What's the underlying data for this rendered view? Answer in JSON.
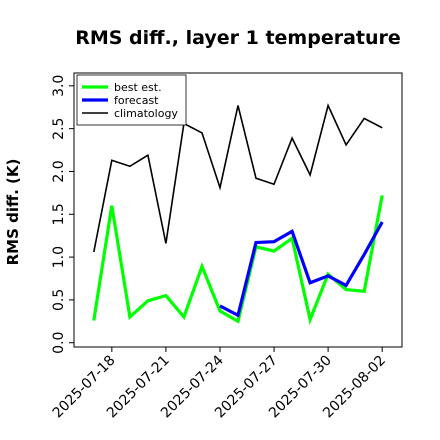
{
  "chart_data": {
    "type": "line",
    "title": "RMS diff., layer 1 temperature",
    "ylabel": "RMS diff. (K)",
    "xlabel": "",
    "ylim": [
      -0.05,
      3.15
    ],
    "yticks": [
      "0.0",
      "0.5",
      "1.0",
      "1.5",
      "2.0",
      "2.5",
      "3.0"
    ],
    "xticks": [
      "2025-07-18",
      "2025-07-21",
      "2025-07-24",
      "2025-07-27",
      "2025-07-30",
      "2025-08-02"
    ],
    "highlighted_xtick": "2025-07-24",
    "highlight_color": "#2e8b2e",
    "legend_position": "top-left",
    "grid": false,
    "series": [
      {
        "name": "best est.",
        "color": "#00ff00",
        "x": [
          "2025-07-17",
          "2025-07-18",
          "2025-07-19",
          "2025-07-20",
          "2025-07-21",
          "2025-07-22",
          "2025-07-23",
          "2025-07-24",
          "2025-07-25",
          "2025-07-26",
          "2025-07-27",
          "2025-07-28",
          "2025-07-29",
          "2025-07-30",
          "2025-07-31",
          "2025-08-01",
          "2025-08-02"
        ],
        "y": [
          0.26,
          1.6,
          0.3,
          0.49,
          0.55,
          0.3,
          0.89,
          0.37,
          0.25,
          1.12,
          1.07,
          1.22,
          0.27,
          0.8,
          0.62,
          0.6,
          1.72
        ]
      },
      {
        "name": "forecast",
        "color": "#0000ff",
        "x": [
          "2025-07-24",
          "2025-07-25",
          "2025-07-26",
          "2025-07-27",
          "2025-07-28",
          "2025-07-29",
          "2025-07-30",
          "2025-07-31",
          "2025-08-01",
          "2025-08-02"
        ],
        "y": [
          0.43,
          0.32,
          1.17,
          1.18,
          1.3,
          0.7,
          0.78,
          0.67,
          1.03,
          1.41
        ]
      },
      {
        "name": "climatology",
        "color": "#000000",
        "x": [
          "2025-07-17",
          "2025-07-18",
          "2025-07-19",
          "2025-07-20",
          "2025-07-21",
          "2025-07-22",
          "2025-07-23",
          "2025-07-24",
          "2025-07-25",
          "2025-07-26",
          "2025-07-27",
          "2025-07-28",
          "2025-07-29",
          "2025-07-30",
          "2025-07-31",
          "2025-08-01",
          "2025-08-02"
        ],
        "y": [
          1.06,
          2.13,
          2.06,
          2.19,
          1.16,
          2.56,
          2.45,
          1.81,
          2.77,
          1.92,
          1.85,
          2.39,
          1.96,
          2.77,
          2.31,
          2.62,
          2.51
        ]
      }
    ]
  }
}
